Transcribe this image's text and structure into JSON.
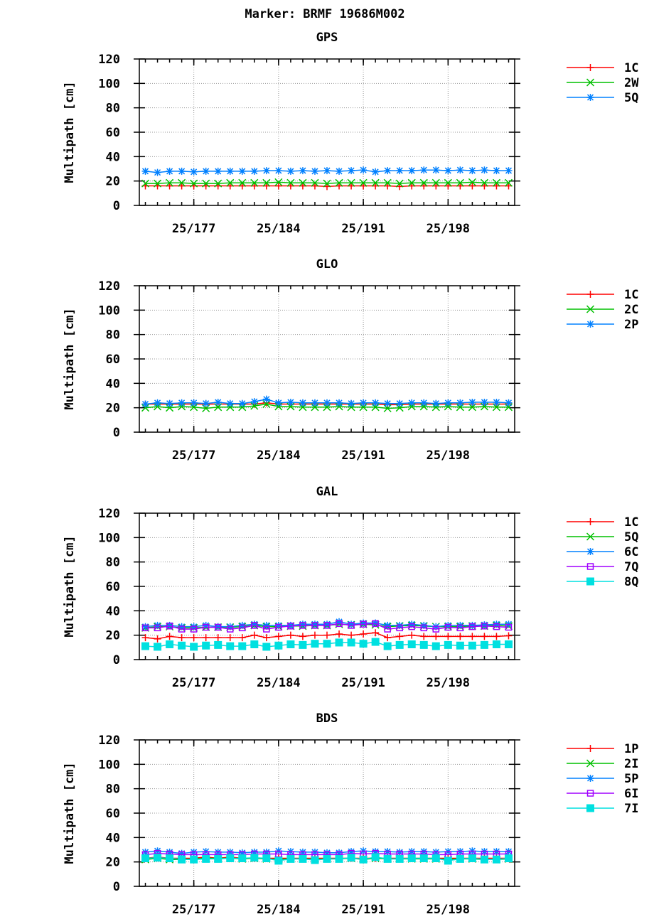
{
  "figure": {
    "title": "Marker: BRMF 19686M002"
  },
  "chart_data": [
    {
      "type": "line",
      "title": "GPS",
      "ylabel": "Multipath [cm]",
      "ylim": [
        0,
        120
      ],
      "yticks": [
        0,
        20,
        40,
        60,
        80,
        100,
        120
      ],
      "xlim": [
        172.5,
        203.5
      ],
      "xticks": [
        {
          "value": 177,
          "label": "25/177"
        },
        {
          "value": 184,
          "label": "25/184"
        },
        {
          "value": 191,
          "label": "25/191"
        },
        {
          "value": 198,
          "label": "25/198"
        }
      ],
      "grid": true,
      "legend": "right",
      "x": [
        173,
        174,
        175,
        176,
        177,
        178,
        179,
        180,
        181,
        182,
        183,
        184,
        185,
        186,
        187,
        188,
        189,
        190,
        191,
        192,
        193,
        194,
        195,
        196,
        197,
        198,
        199,
        200,
        201,
        202,
        203
      ],
      "series": [
        {
          "name": "1C",
          "color": "#ff0000",
          "marker": "plus",
          "values": [
            16,
            16,
            16,
            16,
            16,
            16,
            16,
            16,
            16,
            16,
            16,
            16,
            16,
            16,
            16,
            15.5,
            16,
            16,
            16,
            16,
            16,
            15.5,
            16,
            16,
            16,
            16,
            16,
            16,
            16,
            16,
            16
          ]
        },
        {
          "name": "2W",
          "color": "#00c000",
          "marker": "cross",
          "values": [
            18,
            18,
            18.5,
            18.5,
            18,
            18,
            18,
            18.5,
            18.5,
            18.5,
            18.5,
            19,
            18.5,
            18.5,
            18.5,
            18,
            18.5,
            18.5,
            18.5,
            18.5,
            18.5,
            18,
            18.5,
            18.5,
            18.5,
            18.5,
            18.5,
            19,
            18.5,
            18.5,
            18.5
          ]
        },
        {
          "name": "5Q",
          "color": "#0080ff",
          "marker": "star",
          "values": [
            28,
            27,
            28,
            28,
            27.5,
            28,
            28,
            28,
            28,
            28,
            28.5,
            28.5,
            28,
            28.5,
            28,
            28.5,
            28,
            28.5,
            29,
            27.5,
            28.5,
            28.5,
            28.5,
            29,
            29,
            28.5,
            29,
            28.5,
            29,
            28.5,
            28.5
          ]
        }
      ]
    },
    {
      "type": "line",
      "title": "GLO",
      "ylabel": "Multipath [cm]",
      "ylim": [
        0,
        120
      ],
      "yticks": [
        0,
        20,
        40,
        60,
        80,
        100,
        120
      ],
      "xlim": [
        172.5,
        203.5
      ],
      "xticks": [
        {
          "value": 177,
          "label": "25/177"
        },
        {
          "value": 184,
          "label": "25/184"
        },
        {
          "value": 191,
          "label": "25/191"
        },
        {
          "value": 198,
          "label": "25/198"
        }
      ],
      "grid": true,
      "legend": "right",
      "x": [
        173,
        174,
        175,
        176,
        177,
        178,
        179,
        180,
        181,
        182,
        183,
        184,
        185,
        186,
        187,
        188,
        189,
        190,
        191,
        192,
        193,
        194,
        195,
        196,
        197,
        198,
        199,
        200,
        201,
        202,
        203
      ],
      "series": [
        {
          "name": "1C",
          "color": "#ff0000",
          "marker": "plus",
          "values": [
            23,
            23,
            23,
            23,
            23,
            23,
            23,
            23,
            23,
            23,
            24,
            23,
            23,
            23,
            23,
            23,
            23,
            23,
            23,
            23,
            22.5,
            22.5,
            23,
            23,
            23,
            23,
            23,
            23,
            23,
            23,
            23
          ]
        },
        {
          "name": "2C",
          "color": "#00c000",
          "marker": "cross",
          "values": [
            20,
            21,
            20,
            21,
            20.5,
            19.5,
            20.5,
            20.5,
            20.5,
            21.5,
            23,
            21,
            21,
            20.5,
            20.5,
            20.5,
            21,
            20.5,
            20.5,
            20.5,
            19.5,
            20,
            21,
            21,
            20.5,
            21,
            20.5,
            20.5,
            21,
            20.5,
            20.5
          ]
        },
        {
          "name": "2P",
          "color": "#0080ff",
          "marker": "star",
          "values": [
            23,
            24,
            23.5,
            24,
            24,
            23.5,
            24.5,
            23.5,
            23.5,
            25,
            27,
            24,
            24.5,
            24,
            24,
            24,
            24,
            23.5,
            24,
            24,
            23.5,
            23.5,
            24,
            24,
            23.5,
            24,
            24,
            24.5,
            24.5,
            24.5,
            24
          ]
        }
      ]
    },
    {
      "type": "line",
      "title": "GAL",
      "ylabel": "Multipath [cm]",
      "ylim": [
        0,
        120
      ],
      "yticks": [
        0,
        20,
        40,
        60,
        80,
        100,
        120
      ],
      "xlim": [
        172.5,
        203.5
      ],
      "xticks": [
        {
          "value": 177,
          "label": "25/177"
        },
        {
          "value": 184,
          "label": "25/184"
        },
        {
          "value": 191,
          "label": "25/191"
        },
        {
          "value": 198,
          "label": "25/198"
        }
      ],
      "grid": true,
      "legend": "right",
      "x": [
        173,
        174,
        175,
        176,
        177,
        178,
        179,
        180,
        181,
        182,
        183,
        184,
        185,
        186,
        187,
        188,
        189,
        190,
        191,
        192,
        193,
        194,
        195,
        196,
        197,
        198,
        199,
        200,
        201,
        202,
        203
      ],
      "series": [
        {
          "name": "1C",
          "color": "#ff0000",
          "marker": "plus",
          "values": [
            18,
            17,
            19,
            18,
            18,
            18,
            18,
            18,
            18,
            20,
            18,
            19,
            20,
            19,
            20,
            20,
            21,
            20,
            21,
            22,
            18,
            19,
            20,
            19,
            19,
            19,
            19,
            19,
            19,
            19,
            19.5
          ]
        },
        {
          "name": "5Q",
          "color": "#00c000",
          "marker": "cross",
          "values": [
            26,
            27,
            27,
            26,
            26,
            26.5,
            26.5,
            26.5,
            27,
            28,
            27,
            27,
            27.5,
            27.5,
            28,
            28,
            29,
            28.5,
            29,
            28.5,
            27,
            27.5,
            28,
            27.5,
            27,
            27,
            27,
            27.5,
            27.5,
            28,
            27.5
          ]
        },
        {
          "name": "6C",
          "color": "#0080ff",
          "marker": "star",
          "values": [
            27,
            28,
            28,
            27,
            27,
            28,
            27,
            27,
            28,
            29,
            28,
            28,
            28,
            29,
            29,
            29,
            31,
            29,
            30,
            30,
            28,
            28,
            29,
            28,
            27,
            28,
            28,
            28,
            28.5,
            29,
            29
          ]
        },
        {
          "name": "7Q",
          "color": "#a000ff",
          "marker": "square",
          "values": [
            26,
            26,
            27.5,
            25,
            25,
            26.5,
            26.5,
            25,
            26,
            28,
            25,
            26.5,
            27.5,
            28,
            28,
            28,
            29.5,
            28,
            29,
            29.5,
            25,
            26,
            27,
            26,
            25,
            26.5,
            26,
            27,
            27.5,
            27,
            26.5
          ]
        },
        {
          "name": "8Q",
          "color": "#00e0e0",
          "marker": "filled-square",
          "values": [
            11,
            10.5,
            12.5,
            11.5,
            10.5,
            11.5,
            12,
            11,
            11,
            12.5,
            10.5,
            11.5,
            12.5,
            12,
            13,
            13,
            14,
            14,
            13,
            14.5,
            11,
            12,
            12.5,
            12,
            11,
            12,
            11.5,
            11.5,
            12,
            12.5,
            12.5
          ]
        }
      ]
    },
    {
      "type": "line",
      "title": "BDS",
      "ylabel": "Multipath [cm]",
      "ylim": [
        0,
        120
      ],
      "yticks": [
        0,
        20,
        40,
        60,
        80,
        100,
        120
      ],
      "xlim": [
        172.5,
        203.5
      ],
      "xticks": [
        {
          "value": 177,
          "label": "25/177"
        },
        {
          "value": 184,
          "label": "25/184"
        },
        {
          "value": 191,
          "label": "25/191"
        },
        {
          "value": 198,
          "label": "25/198"
        }
      ],
      "grid": true,
      "legend": "right",
      "x": [
        173,
        174,
        175,
        176,
        177,
        178,
        179,
        180,
        181,
        182,
        183,
        184,
        185,
        186,
        187,
        188,
        189,
        190,
        191,
        192,
        193,
        194,
        195,
        196,
        197,
        198,
        199,
        200,
        201,
        202,
        203
      ],
      "series": [
        {
          "name": "1P",
          "color": "#ff0000",
          "marker": "plus",
          "values": [
            23,
            24,
            23,
            23,
            23,
            24,
            23,
            24,
            23,
            23,
            23,
            23,
            23,
            23,
            23,
            23,
            23,
            23,
            23,
            23,
            23,
            23,
            23,
            23,
            23,
            23,
            23,
            23,
            23,
            23,
            23
          ]
        },
        {
          "name": "2I",
          "color": "#00c000",
          "marker": "cross",
          "values": [
            22,
            23,
            22,
            22,
            22.5,
            23,
            23,
            23,
            22.5,
            23,
            22.5,
            22,
            22.5,
            22.5,
            22,
            22.5,
            22.5,
            23,
            22,
            23,
            22.5,
            22.5,
            22.5,
            22.5,
            22.5,
            22,
            22.5,
            22.5,
            22,
            22,
            22.5
          ]
        },
        {
          "name": "5P",
          "color": "#0080ff",
          "marker": "star",
          "values": [
            28,
            29,
            28,
            27,
            28,
            28.5,
            28,
            28,
            27.5,
            28,
            28,
            29,
            28.5,
            28,
            28,
            27.5,
            27.5,
            28.5,
            29,
            28.5,
            28.5,
            28,
            28.5,
            28.5,
            28,
            28.5,
            28.5,
            29,
            28.5,
            28.5,
            28.5
          ]
        },
        {
          "name": "6I",
          "color": "#a000ff",
          "marker": "square",
          "values": [
            26,
            27,
            26.5,
            26,
            26,
            26,
            26,
            26,
            26,
            26.5,
            26.5,
            26.5,
            26,
            26,
            26,
            26,
            26,
            27,
            26.5,
            27,
            26.5,
            26.5,
            26.5,
            26.5,
            26,
            26,
            26.5,
            26.5,
            26.5,
            26.5,
            26.5
          ]
        },
        {
          "name": "7I",
          "color": "#00e0e0",
          "marker": "filled-square",
          "values": [
            23,
            23.5,
            23,
            22,
            22,
            22.5,
            22.5,
            23,
            23,
            23.5,
            23,
            21,
            22.5,
            22.5,
            21.5,
            22.5,
            22.5,
            23.5,
            22,
            24,
            22.5,
            22.5,
            23,
            23,
            23,
            21,
            22.5,
            23,
            22,
            22,
            23
          ]
        }
      ]
    }
  ]
}
